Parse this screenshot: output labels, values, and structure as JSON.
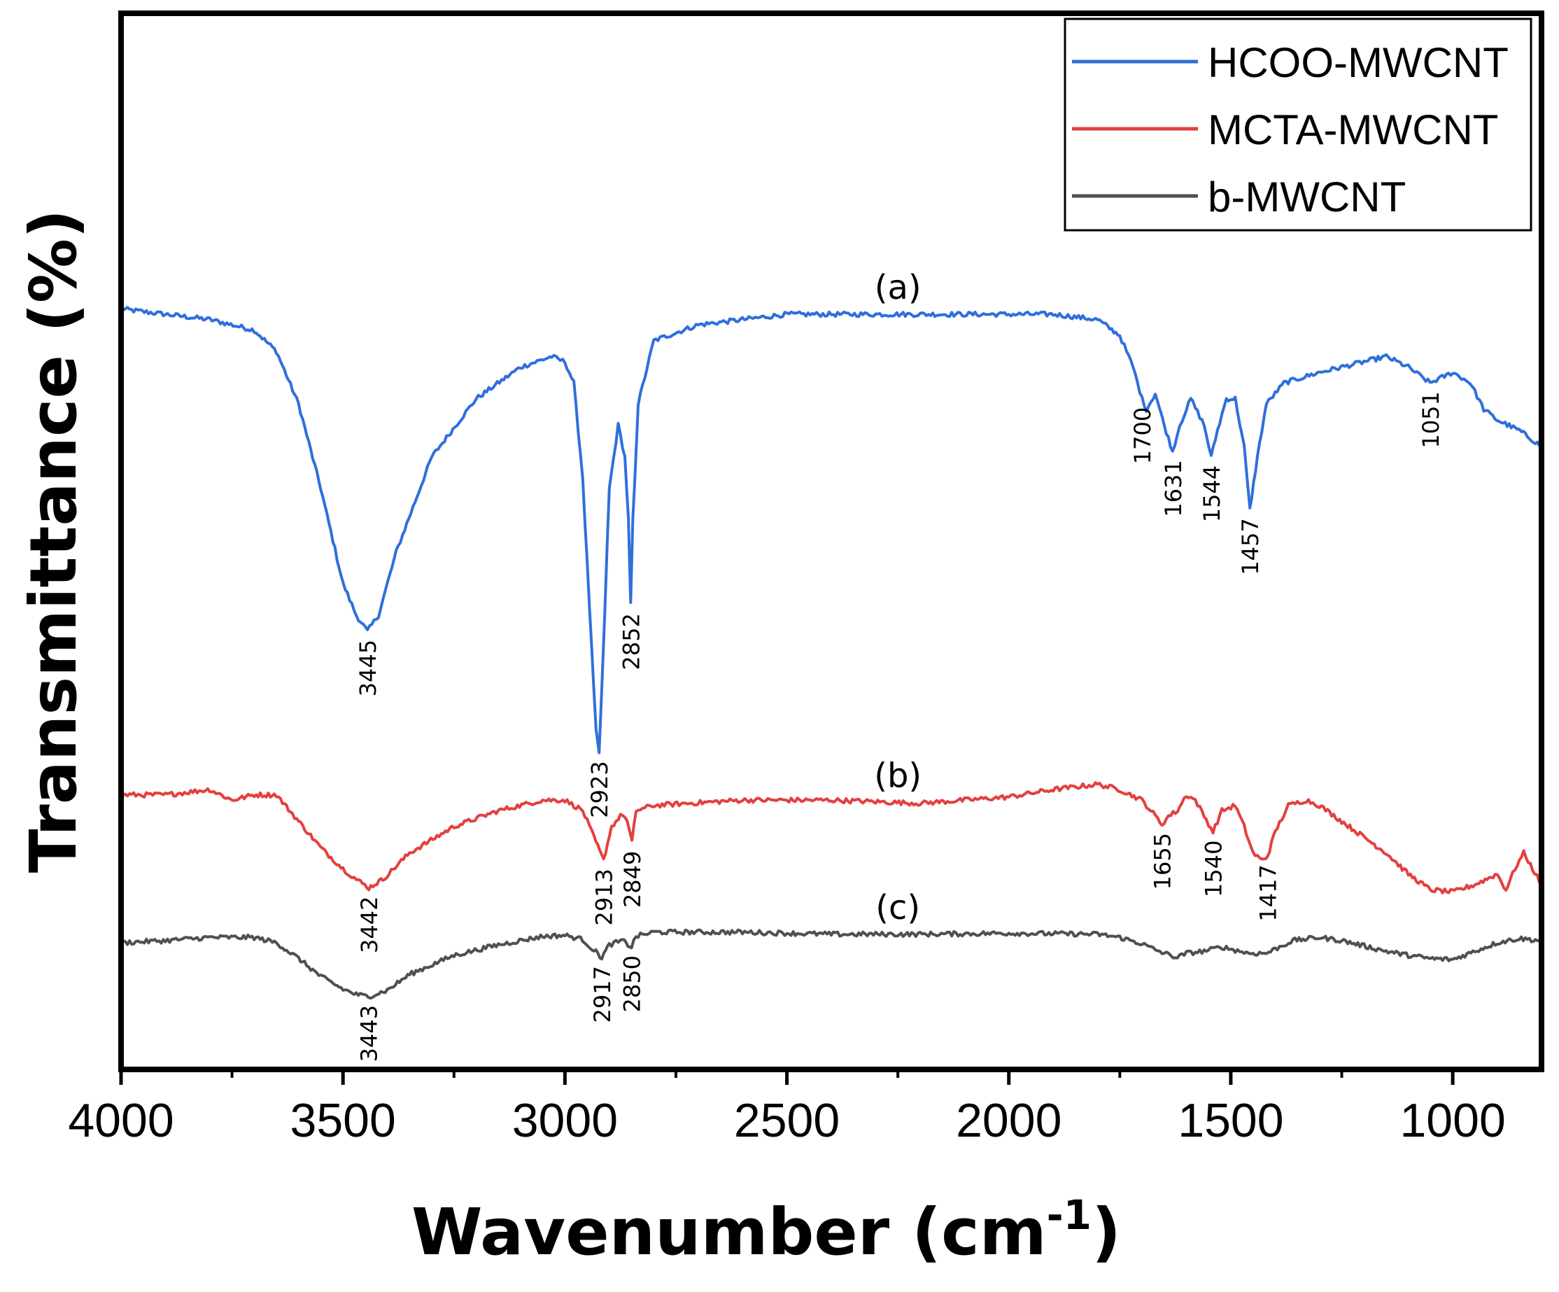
{
  "chart_data": {
    "type": "line",
    "title": "",
    "xlabel_main": "Wavenumber (cm",
    "xlabel_sup": "-1",
    "xlabel_close": ")",
    "ylabel": "Transmittance (%)",
    "xlim": [
      4000,
      800
    ],
    "x_ticks": [
      4000,
      3500,
      3000,
      2500,
      2000,
      1500,
      1000
    ],
    "x_tick_labels": [
      "4000",
      "3500",
      "3000",
      "2500",
      "2000",
      "1500",
      "1000"
    ],
    "y_ticks_shown": false,
    "ylim": [
      0,
      100
    ],
    "legend": {
      "position": "top-right",
      "entries": [
        "HCOO-MWCNT",
        "MCTA-MWCNT",
        "b-MWCNT"
      ]
    },
    "series": [
      {
        "name": "HCOO-MWCNT",
        "label": "(a)",
        "color": "#2f6fdb",
        "points": [
          [
            4000,
            72.0
          ],
          [
            3900,
            71.5
          ],
          [
            3800,
            71.0
          ],
          [
            3700,
            70.0
          ],
          [
            3650,
            68.0
          ],
          [
            3600,
            63.0
          ],
          [
            3550,
            55.0
          ],
          [
            3500,
            46.0
          ],
          [
            3470,
            43.0
          ],
          [
            3445,
            41.5
          ],
          [
            3420,
            43.0
          ],
          [
            3380,
            49.0
          ],
          [
            3300,
            58.0
          ],
          [
            3200,
            63.5
          ],
          [
            3100,
            66.5
          ],
          [
            3030,
            67.5
          ],
          [
            3000,
            67.0
          ],
          [
            2980,
            65.0
          ],
          [
            2960,
            56.0
          ],
          [
            2940,
            40.0
          ],
          [
            2930,
            32.0
          ],
          [
            2923,
            30.0
          ],
          [
            2915,
            38.0
          ],
          [
            2900,
            55.0
          ],
          [
            2880,
            61.0
          ],
          [
            2865,
            58.0
          ],
          [
            2857,
            52.0
          ],
          [
            2852,
            44.0
          ],
          [
            2847,
            52.0
          ],
          [
            2835,
            63.0
          ],
          [
            2800,
            69.0
          ],
          [
            2700,
            70.5
          ],
          [
            2500,
            71.5
          ],
          [
            2300,
            71.5
          ],
          [
            2100,
            71.5
          ],
          [
            1900,
            71.5
          ],
          [
            1800,
            71.0
          ],
          [
            1750,
            69.5
          ],
          [
            1720,
            66.5
          ],
          [
            1700,
            63.5
          ],
          [
            1690,
            62.5
          ],
          [
            1670,
            64.0
          ],
          [
            1650,
            61.0
          ],
          [
            1631,
            58.5
          ],
          [
            1615,
            61.0
          ],
          [
            1590,
            63.5
          ],
          [
            1560,
            61.0
          ],
          [
            1544,
            58.0
          ],
          [
            1530,
            60.5
          ],
          [
            1510,
            63.5
          ],
          [
            1490,
            63.5
          ],
          [
            1470,
            59.0
          ],
          [
            1457,
            53.0
          ],
          [
            1440,
            58.0
          ],
          [
            1420,
            63.0
          ],
          [
            1380,
            65.0
          ],
          [
            1300,
            66.0
          ],
          [
            1200,
            67.0
          ],
          [
            1150,
            67.5
          ],
          [
            1100,
            66.5
          ],
          [
            1051,
            65.0
          ],
          [
            1000,
            66.0
          ],
          [
            960,
            65.0
          ],
          [
            930,
            62.5
          ],
          [
            900,
            61.5
          ],
          [
            850,
            60.5
          ],
          [
            800,
            59.0
          ]
        ],
        "peaks": [
          "3445",
          "2923",
          "2852",
          "1700",
          "1631",
          "1544",
          "1457",
          "1051"
        ]
      },
      {
        "name": "MCTA-MWCNT",
        "label": "(b)",
        "color": "#e34040",
        "points": [
          [
            4000,
            26.0
          ],
          [
            3900,
            26.0
          ],
          [
            3800,
            26.5
          ],
          [
            3750,
            25.5
          ],
          [
            3700,
            26.0
          ],
          [
            3650,
            26.0
          ],
          [
            3600,
            23.5
          ],
          [
            3550,
            21.0
          ],
          [
            3500,
            19.0
          ],
          [
            3470,
            18.0
          ],
          [
            3442,
            17.2
          ],
          [
            3410,
            18.0
          ],
          [
            3350,
            20.5
          ],
          [
            3250,
            23.0
          ],
          [
            3150,
            24.5
          ],
          [
            3050,
            25.5
          ],
          [
            3000,
            25.5
          ],
          [
            2960,
            24.5
          ],
          [
            2935,
            22.0
          ],
          [
            2913,
            19.8
          ],
          [
            2895,
            23.0
          ],
          [
            2870,
            24.2
          ],
          [
            2860,
            23.5
          ],
          [
            2849,
            21.5
          ],
          [
            2840,
            24.5
          ],
          [
            2800,
            25.0
          ],
          [
            2600,
            25.5
          ],
          [
            2400,
            25.5
          ],
          [
            2200,
            25.2
          ],
          [
            2000,
            25.8
          ],
          [
            1900,
            26.5
          ],
          [
            1800,
            27.0
          ],
          [
            1750,
            26.5
          ],
          [
            1700,
            25.5
          ],
          [
            1670,
            24.0
          ],
          [
            1655,
            23.2
          ],
          [
            1640,
            24.0
          ],
          [
            1620,
            24.5
          ],
          [
            1600,
            26.0
          ],
          [
            1580,
            25.5
          ],
          [
            1560,
            24.0
          ],
          [
            1540,
            22.5
          ],
          [
            1520,
            24.5
          ],
          [
            1490,
            25.0
          ],
          [
            1470,
            23.0
          ],
          [
            1450,
            20.5
          ],
          [
            1430,
            19.8
          ],
          [
            1417,
            20.2
          ],
          [
            1400,
            22.5
          ],
          [
            1370,
            25.0
          ],
          [
            1330,
            25.5
          ],
          [
            1300,
            25.0
          ],
          [
            1250,
            23.5
          ],
          [
            1200,
            22.0
          ],
          [
            1150,
            20.5
          ],
          [
            1100,
            18.5
          ],
          [
            1050,
            17.0
          ],
          [
            1000,
            16.8
          ],
          [
            950,
            17.5
          ],
          [
            900,
            18.5
          ],
          [
            880,
            17.0
          ],
          [
            860,
            19.0
          ],
          [
            840,
            20.5
          ],
          [
            820,
            19.0
          ],
          [
            800,
            17.5
          ]
        ],
        "peaks": [
          "3442",
          "2913",
          "2849",
          "1655",
          "1540",
          "1417"
        ]
      },
      {
        "name": "b-MWCNT",
        "label": "(c)",
        "color": "#505050",
        "points": [
          [
            4000,
            12.0
          ],
          [
            3900,
            12.2
          ],
          [
            3800,
            12.5
          ],
          [
            3700,
            12.5
          ],
          [
            3650,
            12.0
          ],
          [
            3600,
            10.5
          ],
          [
            3550,
            8.8
          ],
          [
            3500,
            7.6
          ],
          [
            3470,
            7.1
          ],
          [
            3443,
            6.9
          ],
          [
            3400,
            7.5
          ],
          [
            3350,
            9.0
          ],
          [
            3250,
            10.8
          ],
          [
            3150,
            11.8
          ],
          [
            3050,
            12.6
          ],
          [
            3000,
            12.7
          ],
          [
            2960,
            12.3
          ],
          [
            2935,
            11.3
          ],
          [
            2917,
            10.6
          ],
          [
            2900,
            11.8
          ],
          [
            2870,
            12.2
          ],
          [
            2858,
            11.8
          ],
          [
            2850,
            11.6
          ],
          [
            2840,
            12.6
          ],
          [
            2800,
            13.0
          ],
          [
            2600,
            13.0
          ],
          [
            2400,
            12.8
          ],
          [
            2200,
            12.8
          ],
          [
            2000,
            12.9
          ],
          [
            1800,
            12.8
          ],
          [
            1750,
            12.5
          ],
          [
            1700,
            11.9
          ],
          [
            1680,
            11.5
          ],
          [
            1650,
            11.0
          ],
          [
            1620,
            10.6
          ],
          [
            1600,
            11.0
          ],
          [
            1560,
            11.2
          ],
          [
            1520,
            11.6
          ],
          [
            1490,
            11.3
          ],
          [
            1460,
            11.0
          ],
          [
            1420,
            11.0
          ],
          [
            1400,
            11.4
          ],
          [
            1360,
            12.2
          ],
          [
            1300,
            12.5
          ],
          [
            1250,
            12.2
          ],
          [
            1200,
            11.7
          ],
          [
            1150,
            11.2
          ],
          [
            1100,
            10.8
          ],
          [
            1050,
            10.5
          ],
          [
            1000,
            10.4
          ],
          [
            950,
            11.2
          ],
          [
            900,
            12.0
          ],
          [
            850,
            12.4
          ],
          [
            800,
            12.2
          ]
        ],
        "peaks": [
          "3443",
          "2917",
          "2850"
        ]
      }
    ]
  }
}
